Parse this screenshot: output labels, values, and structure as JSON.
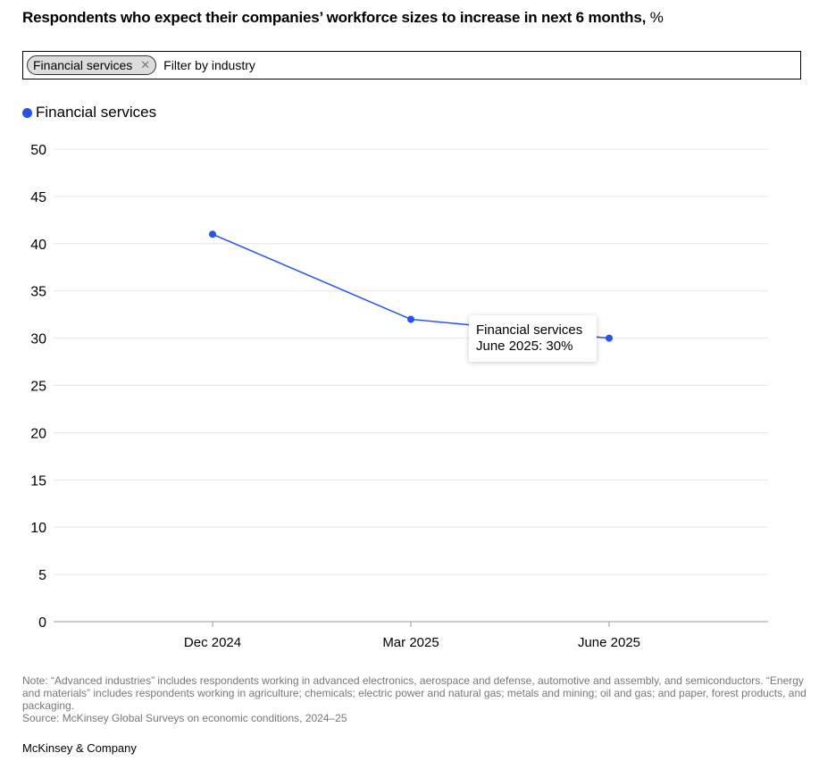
{
  "header": {
    "title": "Respondents who expect their companies’ workforce sizes to increase in next 6 months,",
    "title_unit": "%"
  },
  "filter": {
    "chip_label": "Financial services",
    "chip_remove_icon": "close-icon",
    "placeholder": "Filter by industry"
  },
  "tooltip": {
    "series": "Financial services",
    "value_text": "June 2025: 30%"
  },
  "footer": {
    "note": "Note: “Advanced industries” includes respondents working in advanced electronics, aerospace and defense, automotive and assembly, and semiconductors. “Energy and materials” includes respondents working in agriculture; chemicals; electric power and natural gas; metals and mining; oil and gas; and paper, forest products, and packaging.",
    "source": "Source: McKinsey Global Surveys on economic conditions, 2024–25",
    "brand": "McKinsey & Company"
  },
  "colors": {
    "series": "#2251ff",
    "grid": "#e6e6e6",
    "axis": "#999999"
  },
  "chart_data": {
    "type": "line",
    "title": "Respondents who expect their companies’ workforce sizes to increase in next 6 months, %",
    "categories": [
      "Dec 2024",
      "Mar 2025",
      "June 2025"
    ],
    "series": [
      {
        "name": "Financial services",
        "values": [
          41,
          32,
          30
        ]
      }
    ],
    "ylim": [
      0,
      50
    ],
    "yticks": [
      0,
      5,
      10,
      15,
      20,
      25,
      30,
      35,
      40,
      45,
      50
    ],
    "grid": true,
    "legend": "top-left"
  }
}
